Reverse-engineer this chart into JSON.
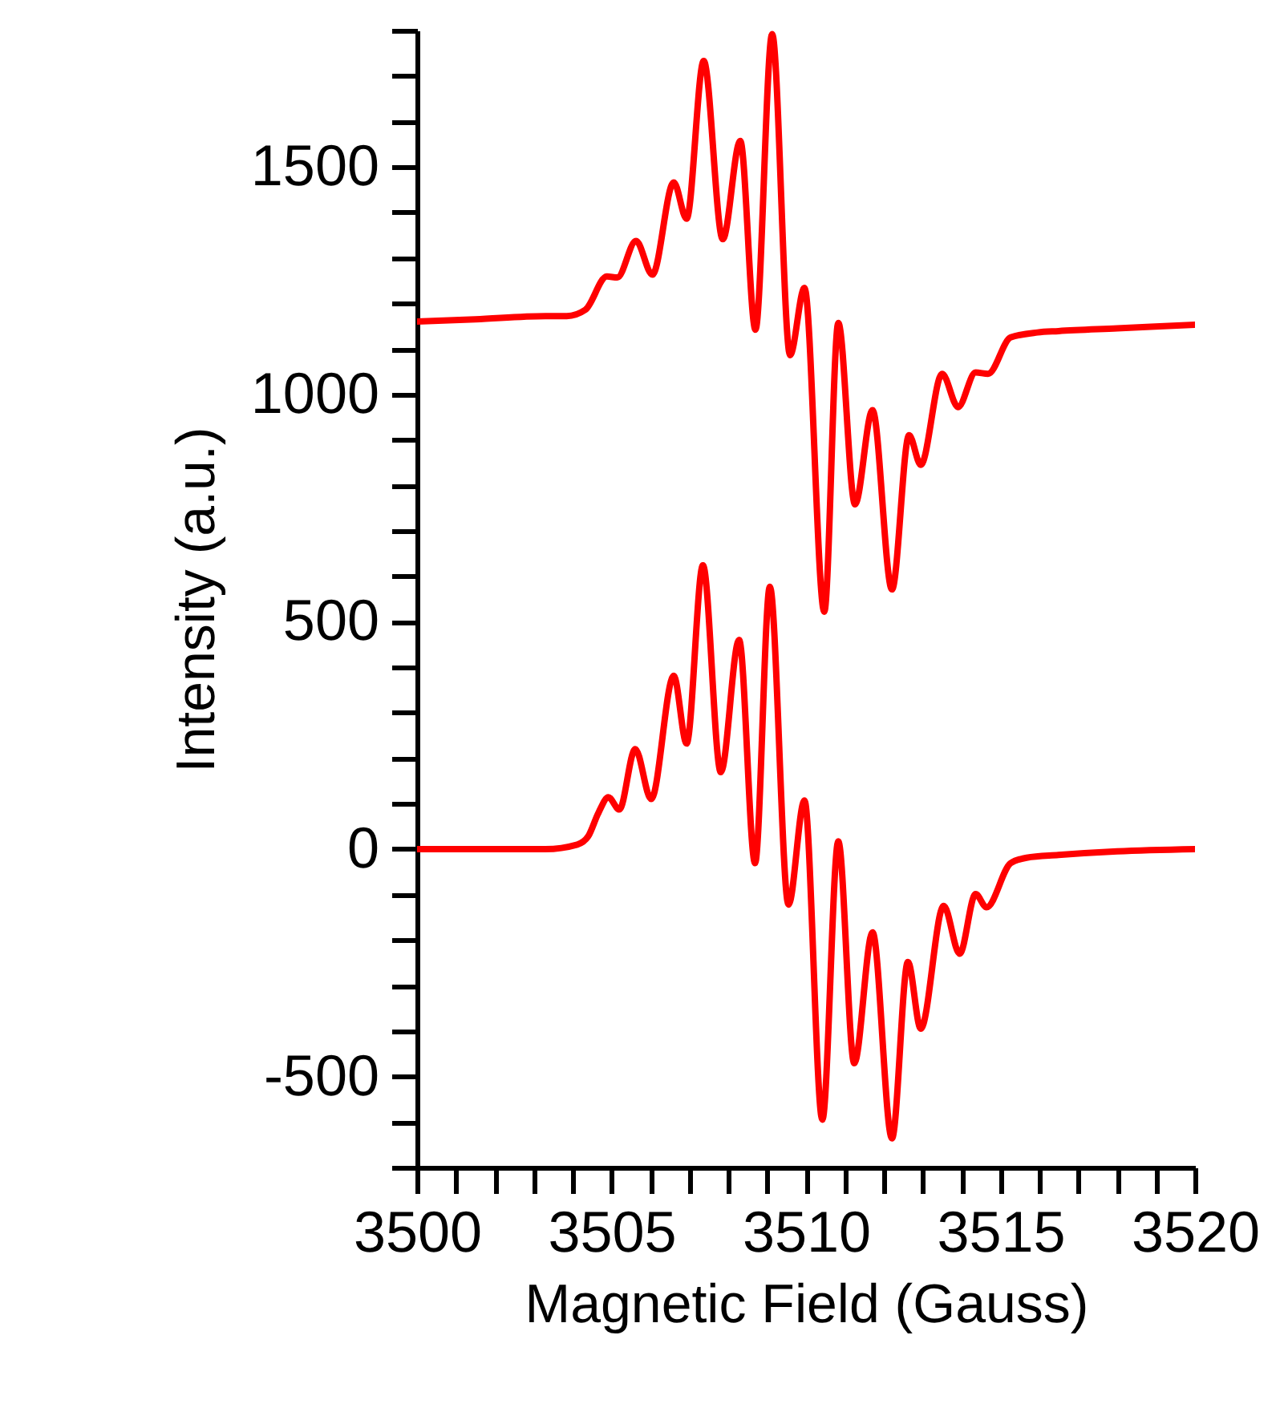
{
  "chart_data": {
    "type": "line",
    "xlabel": "Magnetic Field (Gauss)",
    "ylabel": "Intensity (a.u.)",
    "xlim": [
      3500,
      3520
    ],
    "ylim": [
      -700,
      1800
    ],
    "xticks": [
      3500,
      {
        "value": 3501,
        "label": null
      },
      {
        "value": 3502,
        "label": null
      },
      {
        "value": 3503,
        "label": null
      },
      {
        "value": 3504,
        "label": null
      },
      3505,
      {
        "value": 3506,
        "label": null
      },
      {
        "value": 3507,
        "label": null
      },
      {
        "value": 3508,
        "label": null
      },
      {
        "value": 3509,
        "label": null
      },
      3510,
      {
        "value": 3511,
        "label": null
      },
      {
        "value": 3512,
        "label": null
      },
      {
        "value": 3513,
        "label": null
      },
      {
        "value": 3514,
        "label": null
      },
      3515,
      {
        "value": 3516,
        "label": null
      },
      {
        "value": 3517,
        "label": null
      },
      {
        "value": 3518,
        "label": null
      },
      {
        "value": 3519,
        "label": null
      },
      3520
    ],
    "yticks": [
      {
        "value": -700,
        "label": null
      },
      {
        "value": -600,
        "label": null
      },
      -500,
      {
        "value": -400,
        "label": null
      },
      {
        "value": -300,
        "label": null
      },
      {
        "value": -200,
        "label": null
      },
      {
        "value": -100,
        "label": null
      },
      0,
      {
        "value": 100,
        "label": null
      },
      {
        "value": 200,
        "label": null
      },
      {
        "value": 300,
        "label": null
      },
      {
        "value": 400,
        "label": null
      },
      500,
      {
        "value": 600,
        "label": null
      },
      {
        "value": 700,
        "label": null
      },
      {
        "value": 800,
        "label": null
      },
      {
        "value": 900,
        "label": null
      },
      1000,
      {
        "value": 1100,
        "label": null
      },
      {
        "value": 1200,
        "label": null
      },
      {
        "value": 1300,
        "label": null
      },
      {
        "value": 1400,
        "label": null
      },
      1500,
      {
        "value": 1600,
        "label": null
      },
      {
        "value": 1700,
        "label": null
      },
      {
        "value": 1800,
        "label": null
      }
    ],
    "grid": false,
    "line_style": "solid",
    "series": [
      {
        "color": "#ff0000",
        "x": [
          3500,
          3501.5,
          3503.3,
          3503.85,
          3504.33,
          3504.88,
          3505.15,
          3505.63,
          3506.05,
          3506.6,
          3506.93,
          3507.37,
          3507.86,
          3508.31,
          3508.7,
          3509.13,
          3509.59,
          3509.96,
          3510.47,
          3510.83,
          3511.26,
          3511.71,
          3512.21,
          3512.65,
          3512.95,
          3513.5,
          3513.91,
          3514.36,
          3514.68,
          3515.26,
          3515.95,
          3516.49,
          3518,
          3520
        ],
        "values": [
          1160,
          1165,
          1172,
          1172,
          1186,
          1259,
          1257,
          1337,
          1263,
          1466,
          1386,
          1733,
          1341,
          1557,
          1142,
          1792,
          1086,
          1234,
          522,
          1157,
          758,
          965,
          571,
          910,
          845,
          1045,
          972,
          1048,
          1045,
          1125,
          1136,
          1139,
          1145,
          1153
        ]
      },
      {
        "color": "#ff0000",
        "x": [
          3500,
          3502,
          3503.3,
          3504.12,
          3504.4,
          3504.67,
          3504.92,
          3505.2,
          3505.61,
          3506.02,
          3506.6,
          3506.93,
          3507.35,
          3507.81,
          3508.28,
          3508.69,
          3509.07,
          3509.55,
          3509.96,
          3510.42,
          3510.83,
          3511.24,
          3511.71,
          3512.21,
          3512.62,
          3512.95,
          3513.54,
          3513.95,
          3514.36,
          3514.64,
          3515.26,
          3515.67,
          3516.49,
          3518,
          3520
        ],
        "values": [
          0,
          0,
          0,
          10,
          28,
          81,
          114,
          87,
          220,
          110,
          381,
          232,
          624,
          169,
          460,
          -31,
          577,
          -122,
          107,
          -595,
          17,
          -471,
          -183,
          -636,
          -248,
          -395,
          -125,
          -230,
          -99,
          -128,
          -31,
          -19,
          -13,
          -5,
          0
        ]
      }
    ]
  }
}
